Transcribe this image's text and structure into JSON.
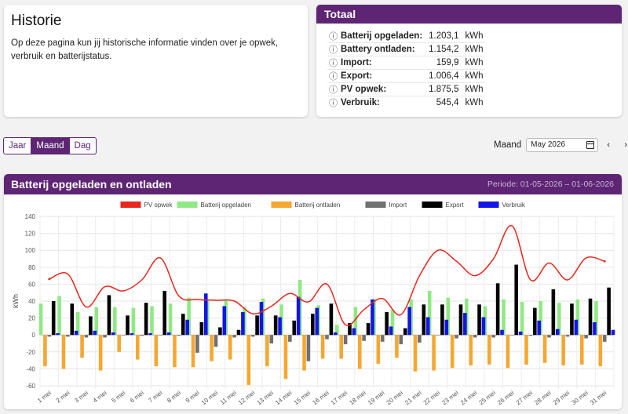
{
  "historie": {
    "title": "Historie",
    "description": "Op deze pagina kun jij historische informatie vinden over je opwek, verbruik en batterijstatus."
  },
  "totaal": {
    "title": "Totaal",
    "rows": [
      {
        "label": "Batterij opgeladen:",
        "value": "1.203,1",
        "unit": "kWh"
      },
      {
        "label": "Battery ontladen:",
        "value": "1.154,2",
        "unit": "kWh"
      },
      {
        "label": "Import:",
        "value": "159,9",
        "unit": "kWh"
      },
      {
        "label": "Export:",
        "value": "1.006,4",
        "unit": "kWh"
      },
      {
        "label": "PV opwek:",
        "value": "1.875,5",
        "unit": "kWh"
      },
      {
        "label": "Verbruik:",
        "value": "545,4",
        "unit": "kWh"
      }
    ]
  },
  "view_buttons": [
    "Jaar",
    "Maand",
    "Dag"
  ],
  "active_view": "Maand",
  "period": {
    "label": "Maand",
    "value": "May 2026",
    "prev": "‹",
    "next": "›"
  },
  "chart_card": {
    "title": "Batterij opgeladen en ontladen",
    "periode": "Periode: 01-05-2026 – 01-06-2026"
  },
  "chart_data": {
    "type": "bar",
    "ylabel": "kWh",
    "xlabel": "",
    "ylim": [
      -60,
      140
    ],
    "yticks": [
      -60,
      -40,
      -20,
      0,
      20,
      40,
      60,
      80,
      100,
      120,
      140
    ],
    "grid": true,
    "legend": "top",
    "categories": [
      "1 mei",
      "2 mei",
      "3 mei",
      "4 mei",
      "5 mei",
      "6 mei",
      "7 mei",
      "8 mei",
      "9 mei",
      "10 mei",
      "11 mei",
      "12 mei",
      "13 mei",
      "14 mei",
      "15 mei",
      "16 mei",
      "17 mei",
      "18 mei",
      "19 mei",
      "20 mei",
      "21 mei",
      "22 mei",
      "23 mei",
      "24 mei",
      "25 mei",
      "26 mei",
      "27 mei",
      "28 mei",
      "29 mei",
      "30 mei",
      "31 mei"
    ],
    "series": [
      {
        "name": "PV opwek",
        "type": "line",
        "color": "#e8261c",
        "values": [
          66,
          72,
          33,
          57,
          52,
          65,
          91,
          46,
          42,
          41,
          40,
          25,
          34,
          49,
          39,
          60,
          12,
          30,
          43,
          24,
          70,
          100,
          87,
          70,
          90,
          129,
          65,
          85,
          65,
          91,
          87
        ]
      },
      {
        "name": "Batterij opgeladen",
        "color": "#90e885",
        "values": [
          37,
          46,
          27,
          33,
          33,
          32,
          34,
          37,
          44,
          41,
          42,
          33,
          43,
          36,
          65,
          35,
          12,
          33,
          42,
          30,
          42,
          52,
          44,
          43,
          34,
          42,
          39,
          40,
          38,
          42,
          40
        ]
      },
      {
        "name": "Batterij ontladen",
        "color": "#f5a731",
        "values": [
          -37,
          -40,
          -27,
          -42,
          -20,
          -29,
          -37,
          -38,
          -38,
          -31,
          -29,
          -59,
          -37,
          -52,
          -42,
          -28,
          -28,
          -40,
          -34,
          -27,
          -43,
          -42,
          -39,
          -36,
          -35,
          -39,
          -35,
          -33,
          -36,
          -35,
          -37
        ]
      },
      {
        "name": "Import",
        "color": "#707070",
        "values": [
          -2,
          -2,
          -3,
          -3,
          0,
          -1,
          0,
          -1,
          -21,
          -14,
          -3,
          -2,
          -10,
          -8,
          -31,
          -5,
          -11,
          -7,
          -8,
          -11,
          -9,
          0,
          -4,
          -3,
          -3,
          0,
          -1,
          -3,
          -2,
          -4,
          -8
        ]
      },
      {
        "name": "Export",
        "color": "#000000",
        "values": [
          40,
          37,
          22,
          47,
          23,
          38,
          52,
          25,
          15,
          9,
          6,
          23,
          23,
          17,
          25,
          37,
          14,
          14,
          27,
          8,
          36,
          36,
          36,
          36,
          61,
          83,
          32,
          54,
          37,
          43,
          56
        ]
      },
      {
        "name": "Verbruik",
        "color": "#1414e6",
        "values": [
          2,
          5,
          5,
          3,
          2,
          2,
          3,
          18,
          49,
          34,
          27,
          39,
          21,
          45,
          32,
          3,
          8,
          42,
          10,
          33,
          21,
          18,
          26,
          21,
          6,
          4,
          17,
          7,
          18,
          15,
          6
        ]
      }
    ]
  }
}
